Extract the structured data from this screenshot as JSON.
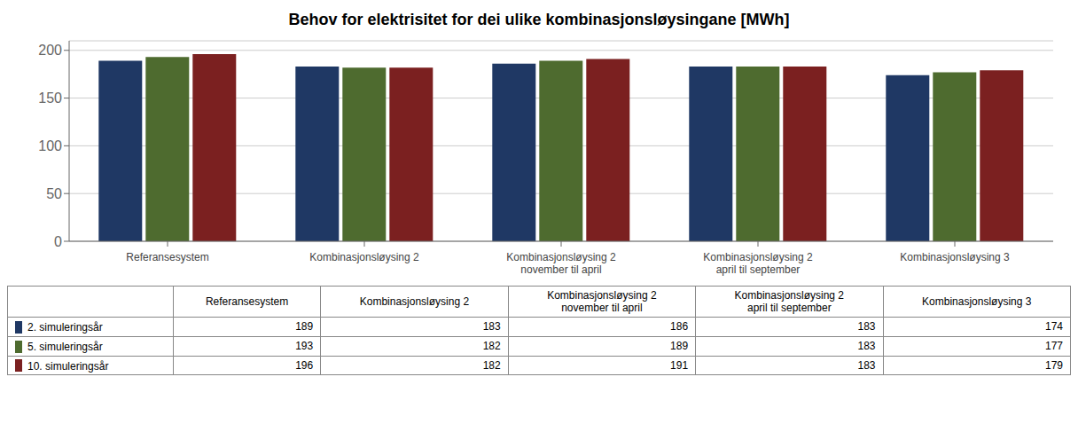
{
  "chart_data": {
    "type": "bar",
    "title": "Behov for elektrisitet for dei ulike kombinasjonsløysingane [MWh]",
    "categories": [
      "Referansesystem",
      "Kombinasjonsløysing 2",
      "Kombinasjonsløysing 2\nnovember til april",
      "Kombinasjonsløysing 2\napril til september",
      "Kombinasjonsløysing 3"
    ],
    "series": [
      {
        "name": "2. simuleringsår",
        "color": "#1F3864",
        "values": [
          189,
          183,
          186,
          183,
          174
        ]
      },
      {
        "name": "5. simuleringsår",
        "color": "#4E6B2F",
        "values": [
          193,
          182,
          189,
          183,
          177
        ]
      },
      {
        "name": "10. simuleringsår",
        "color": "#7B2020",
        "values": [
          196,
          182,
          191,
          183,
          179
        ]
      }
    ],
    "ylim": [
      0,
      210
    ],
    "yticks": [
      0,
      50,
      100,
      150,
      200
    ],
    "grid": true,
    "legend": "bottom"
  }
}
